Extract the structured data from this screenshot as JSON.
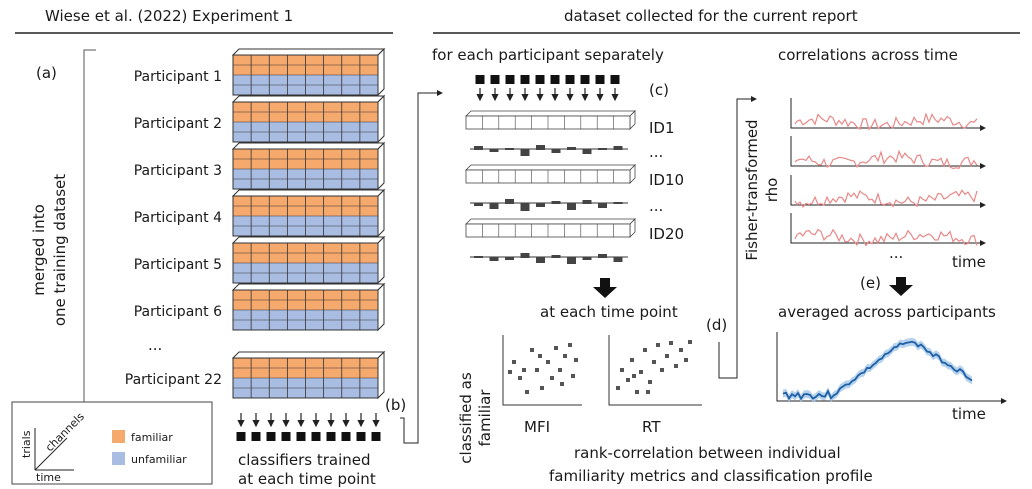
{
  "left_panel": {
    "title": "Wiese et al. (2022) Experiment 1",
    "label_a": "(a)",
    "merged_line1": "merged into",
    "merged_line2": "one training dataset",
    "participants": [
      "Participant 1",
      "Participant 2",
      "Participant 3",
      "Participant 4",
      "Participant 5",
      "Participant 6",
      "Participant 22"
    ],
    "ellipsis": "...",
    "label_b": "(b)",
    "classifiers_line1": "classifiers trained",
    "classifiers_line2": "at each time point"
  },
  "legend": {
    "trials": "trials",
    "channels": "channels",
    "time": "time",
    "familiar": "familiar",
    "unfamiliar": "unfamiliar",
    "familiar_color": "#f6a96c",
    "unfamiliar_color": "#a9bde3"
  },
  "right_panel": {
    "title": "dataset collected for the current report",
    "subtitle_c": "for each participant separately",
    "label_c": "(c)",
    "ids": [
      "ID1",
      "...",
      "ID10",
      "...",
      "ID20"
    ],
    "at_each_time_point": "at each time point",
    "y_label_line1": "classified as",
    "y_label_line2": "familiar",
    "x_labels": [
      "MFI",
      "RT"
    ],
    "rank_line1": "rank-correlation between individual",
    "rank_line2": "familiarity metrics and classification profile",
    "label_d": "(d)",
    "correlations_title": "correlations across time",
    "fisher_line1": "Fisher-transformed",
    "fisher_line2": "rho",
    "dots": "...",
    "time_label": "time",
    "label_e": "(e)",
    "averaged_title": "averaged across participants",
    "time_label2": "time",
    "line_color": "#e88888",
    "avg_color": "#1f5fa6"
  }
}
